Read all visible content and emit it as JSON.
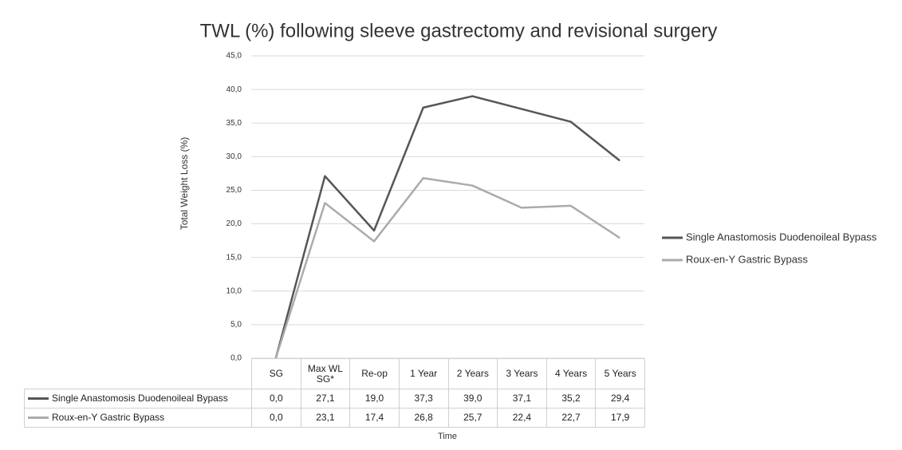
{
  "chart_data": {
    "type": "line",
    "title": "TWL (%) following sleeve gastrectomy and revisional surgery",
    "y_label": "Total Weight Loss (%)",
    "x_label": "Time",
    "categories": [
      "SG",
      "Max WL SG*",
      "Re-op",
      "1 Year",
      "2 Years",
      "3 Years",
      "4 Years",
      "5 Years"
    ],
    "series": [
      {
        "name": "Single Anastomosis Duodenoileal Bypass",
        "color": "#565656",
        "values": [
          0.0,
          27.1,
          19.0,
          37.3,
          39.0,
          37.1,
          35.2,
          29.4
        ],
        "value_labels": [
          "0,0",
          "27,1",
          "19,0",
          "37,3",
          "39,0",
          "37,1",
          "35,2",
          "29,4"
        ]
      },
      {
        "name": "Roux-en-Y Gastric Bypass",
        "color": "#ababab",
        "values": [
          0.0,
          23.1,
          17.4,
          26.8,
          25.7,
          22.4,
          22.7,
          17.9
        ],
        "value_labels": [
          "0,0",
          "23,1",
          "17,4",
          "26,8",
          "25,7",
          "22,4",
          "22,7",
          "17,9"
        ]
      }
    ],
    "ylim": [
      0,
      45
    ],
    "yticks": [
      {
        "value": 0,
        "label": "0,0"
      },
      {
        "value": 5,
        "label": "5,0"
      },
      {
        "value": 10,
        "label": "10,0"
      },
      {
        "value": 15,
        "label": "15,0"
      },
      {
        "value": 20,
        "label": "20,0"
      },
      {
        "value": 25,
        "label": "25,0"
      },
      {
        "value": 30,
        "label": "30,0"
      },
      {
        "value": 35,
        "label": "35,0"
      },
      {
        "value": 40,
        "label": "40,0"
      },
      {
        "value": 45,
        "label": "45,0"
      }
    ],
    "grid": true,
    "legend": "right"
  }
}
